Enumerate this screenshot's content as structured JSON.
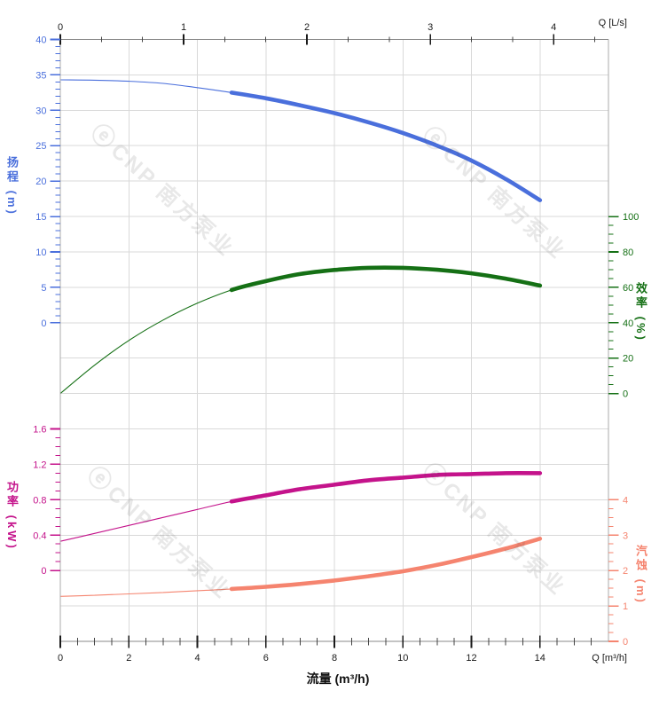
{
  "watermark": {
    "logo_glyph": "ⓔ",
    "text": "CNP 南方泵业"
  },
  "chart_data": {
    "type": "line",
    "title": "",
    "x_unit_conversion": {
      "m3h_per_ls": 3.6
    },
    "axes": {
      "flow_bottom": {
        "title": "流量 (m³/h)",
        "unit_label": "Q [m³/h]",
        "major_ticks": [
          0,
          2,
          4,
          6,
          8,
          10,
          12,
          14
        ],
        "minor_step": 0.5,
        "range": [
          0,
          16
        ],
        "color": "#1a1a1a"
      },
      "flow_top": {
        "unit_label": "Q [L/s]",
        "major_ticks": [
          0,
          1,
          2,
          3,
          4
        ],
        "minor_step": 0.33333,
        "range_ls": [
          0,
          4.444
        ],
        "color": "#1a1a1a"
      },
      "head": {
        "title": "扬程 (m)",
        "side": "left",
        "major_ticks": [
          "40",
          "35",
          "30",
          "25",
          "20",
          "15",
          "10",
          "5",
          "0"
        ],
        "minor_step": 1,
        "range": [
          0,
          40
        ],
        "color": "#4a6fdc"
      },
      "eff": {
        "title": "效率 (%)",
        "side": "right",
        "major_ticks": [
          "100",
          "80",
          "60",
          "40",
          "20",
          "0"
        ],
        "minor_step": 5,
        "range": [
          0,
          100
        ],
        "color": "#157015"
      },
      "power": {
        "title": "功率 (kW)",
        "side": "left",
        "major_ticks": [
          "1.6",
          "1.2",
          "0.8",
          "0.4",
          "0"
        ],
        "minor_step": 0.1,
        "range": [
          0,
          1.6
        ],
        "color": "#c4138b"
      },
      "npsh": {
        "title": "汽蚀 (m)",
        "side": "right",
        "major_ticks": [
          "4",
          "3",
          "2",
          "1",
          "0"
        ],
        "minor_step": 0.25,
        "range": [
          0,
          4
        ],
        "color": "#f5846f"
      }
    },
    "series": [
      {
        "name": "扬程",
        "axis": "head",
        "color": "#4a6fdc",
        "thick_from": 5,
        "points": [
          [
            0,
            34.3
          ],
          [
            1,
            34.25
          ],
          [
            2,
            34.1
          ],
          [
            3,
            33.8
          ],
          [
            4,
            33.2
          ],
          [
            5,
            32.5
          ],
          [
            6,
            31.7
          ],
          [
            7,
            30.7
          ],
          [
            8,
            29.6
          ],
          [
            9,
            28.3
          ],
          [
            10,
            26.8
          ],
          [
            11,
            25.0
          ],
          [
            12,
            22.9
          ],
          [
            13,
            20.3
          ],
          [
            14,
            17.3
          ]
        ]
      },
      {
        "name": "效率",
        "axis": "eff",
        "color": "#157015",
        "thick_from": 5,
        "points": [
          [
            0,
            0
          ],
          [
            1,
            16
          ],
          [
            2,
            30
          ],
          [
            3,
            41.5
          ],
          [
            4,
            51
          ],
          [
            5,
            58.5
          ],
          [
            6,
            63.5
          ],
          [
            7,
            67.5
          ],
          [
            8,
            69.8
          ],
          [
            9,
            71
          ],
          [
            10,
            71
          ],
          [
            11,
            69.9
          ],
          [
            12,
            67.9
          ],
          [
            13,
            64.9
          ],
          [
            14,
            61
          ]
        ]
      },
      {
        "name": "功率",
        "axis": "power",
        "color": "#c4138b",
        "thick_from": 5,
        "points": [
          [
            0,
            0.33
          ],
          [
            1,
            0.42
          ],
          [
            2,
            0.51
          ],
          [
            3,
            0.6
          ],
          [
            4,
            0.69
          ],
          [
            5,
            0.78
          ],
          [
            6,
            0.85
          ],
          [
            7,
            0.92
          ],
          [
            8,
            0.97
          ],
          [
            9,
            1.02
          ],
          [
            10,
            1.05
          ],
          [
            11,
            1.08
          ],
          [
            12,
            1.09
          ],
          [
            13,
            1.1
          ],
          [
            14,
            1.1
          ]
        ]
      },
      {
        "name": "汽蚀",
        "axis": "npsh",
        "color": "#f5846f",
        "thick_from": 5,
        "points": [
          [
            0,
            1.27
          ],
          [
            1,
            1.3
          ],
          [
            2,
            1.34
          ],
          [
            3,
            1.38
          ],
          [
            4,
            1.43
          ],
          [
            5,
            1.48
          ],
          [
            6,
            1.54
          ],
          [
            7,
            1.62
          ],
          [
            8,
            1.72
          ],
          [
            9,
            1.84
          ],
          [
            10,
            1.98
          ],
          [
            11,
            2.16
          ],
          [
            12,
            2.38
          ],
          [
            13,
            2.62
          ],
          [
            14,
            2.9
          ]
        ]
      }
    ],
    "grid": {
      "on": true,
      "color": "#d9d9d9"
    }
  }
}
